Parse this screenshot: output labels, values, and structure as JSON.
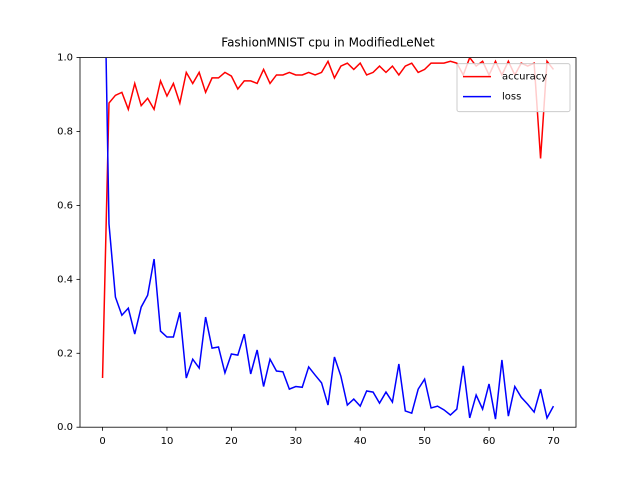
{
  "chart_data": {
    "type": "line",
    "title": "FashionMNIST cpu in ModifiedLeNet",
    "x": [
      0,
      1,
      2,
      3,
      4,
      5,
      6,
      7,
      8,
      9,
      10,
      11,
      12,
      13,
      14,
      15,
      16,
      17,
      18,
      19,
      20,
      21,
      22,
      23,
      24,
      25,
      26,
      27,
      28,
      29,
      30,
      31,
      32,
      33,
      34,
      35,
      36,
      37,
      38,
      39,
      40,
      41,
      42,
      43,
      44,
      45,
      46,
      47,
      48,
      49,
      50,
      51,
      52,
      53,
      54,
      55,
      56,
      57,
      58,
      59,
      60,
      61,
      62,
      63,
      64,
      65,
      66,
      67,
      68,
      69,
      70
    ],
    "series": [
      {
        "name": "accuracy",
        "color": "#ff0000",
        "values": [
          0.133,
          0.877,
          0.898,
          0.906,
          0.86,
          0.93,
          0.87,
          0.89,
          0.86,
          0.937,
          0.896,
          0.93,
          0.877,
          0.96,
          0.93,
          0.96,
          0.906,
          0.945,
          0.945,
          0.96,
          0.95,
          0.915,
          0.937,
          0.937,
          0.93,
          0.968,
          0.93,
          0.953,
          0.953,
          0.96,
          0.953,
          0.953,
          0.96,
          0.953,
          0.96,
          0.99,
          0.945,
          0.977,
          0.985,
          0.968,
          0.985,
          0.953,
          0.96,
          0.977,
          0.96,
          0.977,
          0.953,
          0.977,
          0.985,
          0.96,
          0.968,
          0.985,
          0.985,
          0.985,
          0.99,
          0.985,
          0.953,
          1.0,
          0.977,
          0.99,
          0.953,
          0.99,
          0.953,
          0.99,
          0.953,
          0.985,
          0.977,
          0.985,
          0.727,
          0.99,
          0.968
        ]
      },
      {
        "name": "loss",
        "color": "#0000ff",
        "values": [
          1.55,
          0.55,
          0.352,
          0.303,
          0.322,
          0.252,
          0.325,
          0.357,
          0.455,
          0.26,
          0.244,
          0.244,
          0.311,
          0.133,
          0.184,
          0.16,
          0.298,
          0.214,
          0.217,
          0.147,
          0.198,
          0.195,
          0.252,
          0.144,
          0.209,
          0.11,
          0.184,
          0.152,
          0.15,
          0.103,
          0.11,
          0.108,
          0.163,
          0.141,
          0.12,
          0.06,
          0.19,
          0.138,
          0.06,
          0.076,
          0.057,
          0.098,
          0.095,
          0.065,
          0.095,
          0.068,
          0.171,
          0.044,
          0.038,
          0.103,
          0.13,
          0.052,
          0.057,
          0.047,
          0.033,
          0.049,
          0.166,
          0.025,
          0.087,
          0.049,
          0.117,
          0.022,
          0.182,
          0.03,
          0.11,
          0.081,
          0.062,
          0.041,
          0.103,
          0.025,
          0.057
        ]
      }
    ],
    "xlim": [
      -3.5,
      73.5
    ],
    "xticks": [
      0,
      10,
      20,
      30,
      40,
      50,
      60,
      70
    ],
    "ylim": [
      0,
      1
    ],
    "yticks": [
      {
        "value": 0,
        "label": "0.0"
      },
      0.2,
      0.4,
      0.6,
      0.8,
      {
        "value": 1,
        "label": "1.0"
      }
    ],
    "legend": "upper right",
    "grid": false
  }
}
